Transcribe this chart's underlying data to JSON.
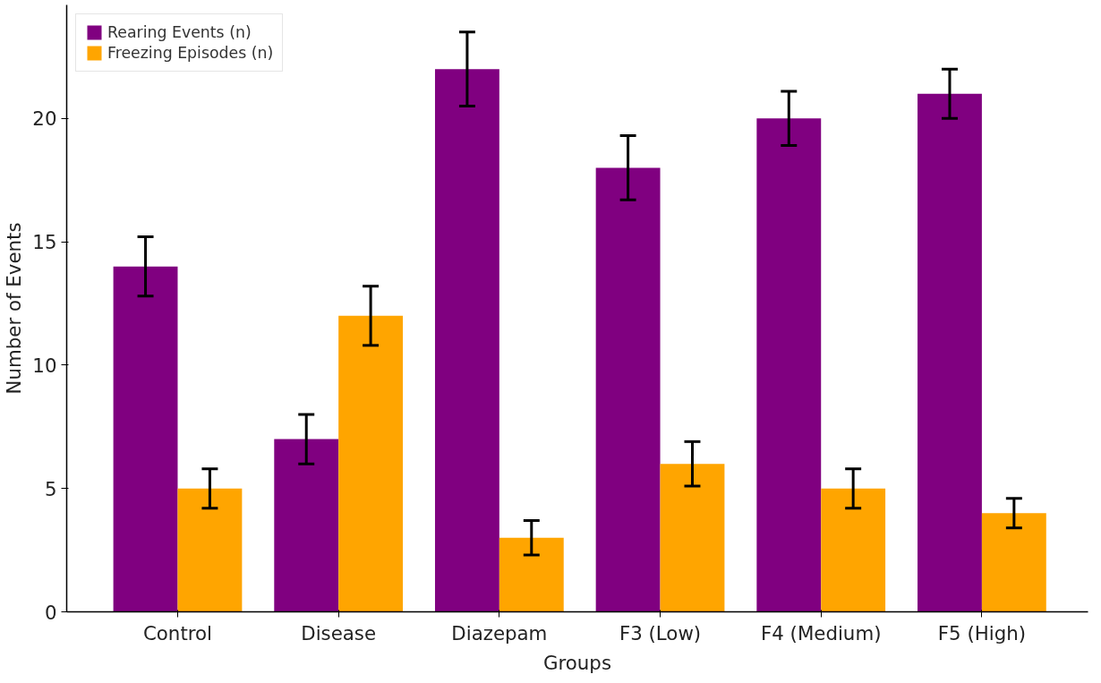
{
  "chart_data": {
    "type": "bar",
    "xlabel": "Groups",
    "ylabel": "Number of Events",
    "categories": [
      "Control",
      "Disease",
      "Diazepam",
      "F3 (Low)",
      "F4 (Medium)",
      "F5 (High)"
    ],
    "series": [
      {
        "name": "Rearing Events (n)",
        "color": "#800080",
        "values": [
          14,
          7,
          22,
          18,
          20,
          21
        ],
        "errors": [
          1.2,
          1,
          1.5,
          1.3,
          1.1,
          1
        ]
      },
      {
        "name": "Freezing Episodes (n)",
        "color": "#ffa500",
        "values": [
          5,
          12,
          3,
          6,
          5,
          4
        ],
        "errors": [
          0.8,
          1.2,
          0.7,
          0.9,
          0.8,
          0.6
        ]
      }
    ],
    "ylim": [
      0,
      24.6
    ],
    "yticks": [
      0,
      5,
      10,
      15,
      20
    ],
    "grid": false,
    "legend": "top left"
  }
}
